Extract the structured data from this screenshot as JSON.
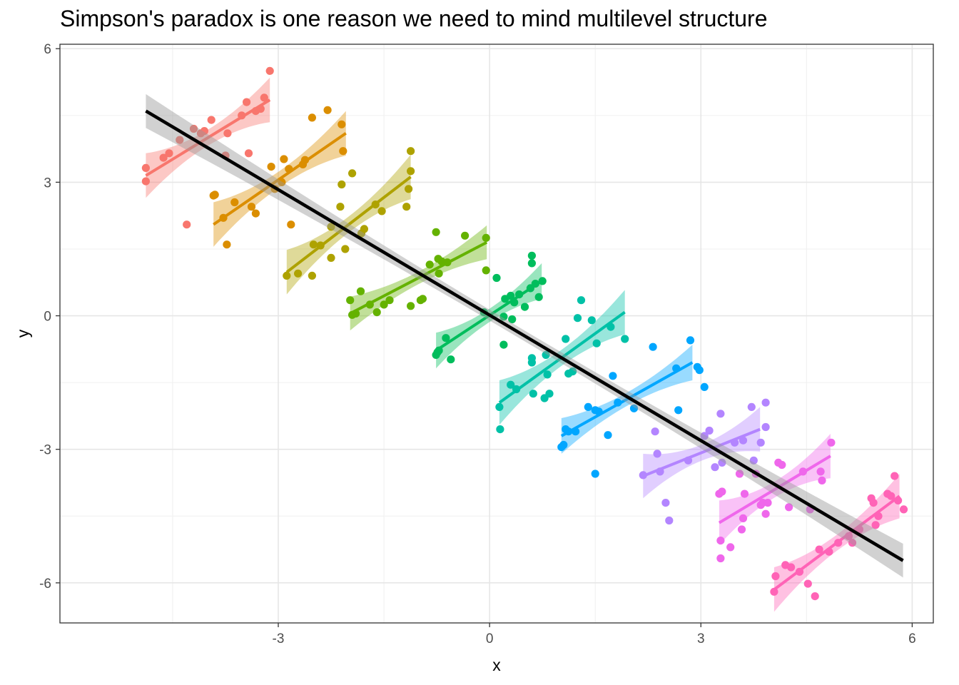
{
  "chart_data": {
    "type": "scatter",
    "title": "Simpson's paradox is one reason we need to mind multilevel structure",
    "xlabel": "x",
    "ylabel": "y",
    "xlim": [
      -6.1,
      6.3
    ],
    "ylim": [
      -6.9,
      6.1
    ],
    "x_ticks": [
      -3,
      0,
      3,
      6
    ],
    "y_ticks": [
      -6,
      -3,
      0,
      3,
      6
    ],
    "x_tick_labels": [
      "-3",
      "0",
      "3",
      "6"
    ],
    "y_tick_labels": [
      "-6",
      "-3",
      "0",
      "3",
      "6"
    ],
    "grid": true,
    "legend": "none",
    "overall_fit": {
      "color": "#000000",
      "band_color": "#999999",
      "x": [
        -4.88,
        5.87
      ],
      "y": [
        4.6,
        -5.5
      ],
      "band_halfwidth": [
        0.38,
        0.12,
        0.38
      ]
    },
    "groups": [
      {
        "color": "#F8766D",
        "fit_x": [
          -4.88,
          -3.12
        ],
        "fit_y": [
          3.15,
          4.85
        ],
        "band_halfwidth": [
          0.5,
          0.18,
          0.5
        ],
        "points": [
          [
            -4.88,
            3.32
          ],
          [
            -4.88,
            3.02
          ],
          [
            -4.63,
            3.55
          ],
          [
            -4.55,
            3.65
          ],
          [
            -4.4,
            3.95
          ],
          [
            -4.3,
            2.05
          ],
          [
            -4.2,
            4.2
          ],
          [
            -4.1,
            4.1
          ],
          [
            -4.05,
            4.15
          ],
          [
            -3.95,
            4.4
          ],
          [
            -3.75,
            3.6
          ],
          [
            -3.72,
            4.1
          ],
          [
            -3.52,
            4.5
          ],
          [
            -3.45,
            4.8
          ],
          [
            -3.42,
            3.65
          ],
          [
            -3.32,
            4.6
          ],
          [
            -3.25,
            4.65
          ],
          [
            -3.2,
            4.9
          ],
          [
            -3.12,
            5.5
          ]
        ]
      },
      {
        "color": "#DB8E00",
        "fit_x": [
          -3.92,
          -2.04
        ],
        "fit_y": [
          2.05,
          4.1
        ],
        "band_halfwidth": [
          0.5,
          0.18,
          0.5
        ],
        "points": [
          [
            -3.92,
            2.7
          ],
          [
            -3.9,
            2.72
          ],
          [
            -3.78,
            2.2
          ],
          [
            -3.73,
            1.6
          ],
          [
            -3.62,
            2.55
          ],
          [
            -3.38,
            2.45
          ],
          [
            -3.32,
            2.3
          ],
          [
            -3.1,
            3.35
          ],
          [
            -3.05,
            2.85
          ],
          [
            -2.95,
            3.0
          ],
          [
            -2.92,
            3.52
          ],
          [
            -2.85,
            3.3
          ],
          [
            -2.82,
            2.05
          ],
          [
            -2.65,
            3.4
          ],
          [
            -2.62,
            3.5
          ],
          [
            -2.52,
            4.45
          ],
          [
            -2.3,
            4.62
          ],
          [
            -2.1,
            4.3
          ],
          [
            -2.08,
            3.7
          ]
        ]
      },
      {
        "color": "#AEA200",
        "fit_x": [
          -2.88,
          -1.12
        ],
        "fit_y": [
          0.98,
          3.12
        ],
        "band_halfwidth": [
          0.5,
          0.18,
          0.5
        ],
        "points": [
          [
            -2.88,
            0.9
          ],
          [
            -2.72,
            0.95
          ],
          [
            -2.52,
            0.9
          ],
          [
            -2.5,
            1.6
          ],
          [
            -2.4,
            1.58
          ],
          [
            -2.25,
            1.3
          ],
          [
            -2.25,
            2.0
          ],
          [
            -2.12,
            2.45
          ],
          [
            -2.05,
            1.5
          ],
          [
            -2.1,
            2.95
          ],
          [
            -1.95,
            3.2
          ],
          [
            -1.82,
            1.85
          ],
          [
            -1.78,
            1.95
          ],
          [
            -1.62,
            2.5
          ],
          [
            -1.53,
            2.35
          ],
          [
            -1.18,
            2.45
          ],
          [
            -1.15,
            2.85
          ],
          [
            -1.12,
            3.25
          ],
          [
            -1.12,
            3.7
          ]
        ]
      },
      {
        "color": "#64B200",
        "fit_x": [
          -1.98,
          -0.04
        ],
        "fit_y": [
          0.05,
          1.65
        ],
        "band_halfwidth": [
          0.38,
          0.14,
          0.38
        ],
        "points": [
          [
            -1.98,
            0.35
          ],
          [
            -1.95,
            0.02
          ],
          [
            -1.9,
            0.05
          ],
          [
            -1.83,
            0.55
          ],
          [
            -1.7,
            0.25
          ],
          [
            -1.6,
            0.08
          ],
          [
            -1.5,
            0.25
          ],
          [
            -1.42,
            0.35
          ],
          [
            -1.12,
            0.22
          ],
          [
            -0.98,
            0.35
          ],
          [
            -0.95,
            0.38
          ],
          [
            -0.85,
            1.15
          ],
          [
            -0.76,
            1.88
          ],
          [
            -0.73,
            1.28
          ],
          [
            -0.68,
            1.22
          ],
          [
            -0.6,
            1.2
          ],
          [
            -0.72,
            0.95
          ],
          [
            -0.35,
            1.8
          ],
          [
            -0.05,
            1.75
          ],
          [
            -0.05,
            1.02
          ]
        ]
      },
      {
        "color": "#00BD5C",
        "fit_x": [
          -0.76,
          0.74
        ],
        "fit_y": [
          -0.78,
          0.78
        ],
        "band_halfwidth": [
          0.4,
          0.15,
          0.4
        ],
        "points": [
          [
            -0.76,
            -0.88
          ],
          [
            -0.74,
            -0.82
          ],
          [
            -0.72,
            -0.78
          ],
          [
            -0.62,
            -0.5
          ],
          [
            -0.55,
            -0.98
          ],
          [
            -0.08,
            0.08
          ],
          [
            0.1,
            0.85
          ],
          [
            0.2,
            -0.65
          ],
          [
            0.2,
            -0.02
          ],
          [
            0.22,
            0.38
          ],
          [
            0.3,
            0.45
          ],
          [
            0.32,
            -0.08
          ],
          [
            0.35,
            0.3
          ],
          [
            0.42,
            0.48
          ],
          [
            0.5,
            0.2
          ],
          [
            0.58,
            0.62
          ],
          [
            0.6,
            1.35
          ],
          [
            0.6,
            1.18
          ],
          [
            0.65,
            0.72
          ],
          [
            0.7,
            0.42
          ],
          [
            0.75,
            0.78
          ]
        ]
      },
      {
        "color": "#00C1A7",
        "fit_x": [
          0.14,
          1.92
        ],
        "fit_y": [
          -1.95,
          0.08
        ],
        "band_halfwidth": [
          0.5,
          0.18,
          0.5
        ],
        "points": [
          [
            0.14,
            -2.05
          ],
          [
            0.15,
            -2.55
          ],
          [
            0.3,
            -1.55
          ],
          [
            0.38,
            -1.65
          ],
          [
            0.6,
            -0.95
          ],
          [
            0.6,
            -1.05
          ],
          [
            0.62,
            -1.75
          ],
          [
            0.78,
            -1.85
          ],
          [
            0.8,
            -0.88
          ],
          [
            0.82,
            -1.32
          ],
          [
            0.85,
            -1.75
          ],
          [
            1.08,
            -0.52
          ],
          [
            1.12,
            -1.3
          ],
          [
            1.18,
            -1.25
          ],
          [
            1.25,
            -0.05
          ],
          [
            1.3,
            0.35
          ],
          [
            1.45,
            -0.1
          ],
          [
            1.52,
            -0.62
          ],
          [
            1.72,
            -0.25
          ],
          [
            1.92,
            -0.52
          ]
        ]
      },
      {
        "color": "#00A6FF",
        "fit_x": [
          1.02,
          2.88
        ],
        "fit_y": [
          -2.7,
          -1.05
        ],
        "band_halfwidth": [
          0.4,
          0.15,
          0.4
        ],
        "points": [
          [
            1.02,
            -2.95
          ],
          [
            1.05,
            -2.9
          ],
          [
            1.08,
            -2.55
          ],
          [
            1.12,
            -2.6
          ],
          [
            1.22,
            -2.6
          ],
          [
            1.4,
            -2.05
          ],
          [
            1.5,
            -2.12
          ],
          [
            1.55,
            -2.15
          ],
          [
            1.5,
            -3.55
          ],
          [
            1.68,
            -2.68
          ],
          [
            1.75,
            -1.35
          ],
          [
            1.82,
            -1.95
          ],
          [
            2.05,
            -2.08
          ],
          [
            2.32,
            -0.7
          ],
          [
            2.65,
            -1.18
          ],
          [
            2.68,
            -2.12
          ],
          [
            2.85,
            -0.55
          ],
          [
            2.95,
            -1.15
          ],
          [
            2.98,
            -1.22
          ],
          [
            3.05,
            -1.6
          ]
        ]
      },
      {
        "color": "#B385FF",
        "fit_x": [
          2.18,
          3.84
        ],
        "fit_y": [
          -3.6,
          -2.55
        ],
        "band_halfwidth": [
          0.5,
          0.18,
          0.5
        ],
        "points": [
          [
            2.18,
            -3.58
          ],
          [
            2.35,
            -2.6
          ],
          [
            2.38,
            -3.1
          ],
          [
            2.42,
            -3.5
          ],
          [
            2.5,
            -4.2
          ],
          [
            2.55,
            -4.6
          ],
          [
            2.82,
            -3.25
          ],
          [
            3.05,
            -2.7
          ],
          [
            3.12,
            -2.58
          ],
          [
            3.2,
            -3.4
          ],
          [
            3.28,
            -2.2
          ],
          [
            3.3,
            -3.3
          ],
          [
            3.48,
            -2.85
          ],
          [
            3.6,
            -2.8
          ],
          [
            3.72,
            -2.05
          ],
          [
            3.75,
            -3.25
          ],
          [
            3.85,
            -2.85
          ],
          [
            3.92,
            -1.95
          ],
          [
            3.92,
            -2.5
          ]
        ]
      },
      {
        "color": "#EF67EB",
        "fit_x": [
          3.26,
          4.84
        ],
        "fit_y": [
          -4.65,
          -3.15
        ],
        "band_halfwidth": [
          0.5,
          0.18,
          0.5
        ],
        "points": [
          [
            3.26,
            -4.0
          ],
          [
            3.28,
            -5.05
          ],
          [
            3.28,
            -5.45
          ],
          [
            3.3,
            -3.95
          ],
          [
            3.42,
            -5.2
          ],
          [
            3.55,
            -3.55
          ],
          [
            3.58,
            -4.8
          ],
          [
            3.6,
            -4.55
          ],
          [
            3.62,
            -4.0
          ],
          [
            3.78,
            -3.55
          ],
          [
            3.85,
            -4.25
          ],
          [
            3.88,
            -4.2
          ],
          [
            3.92,
            -4.45
          ],
          [
            3.95,
            -4.2
          ],
          [
            4.1,
            -3.3
          ],
          [
            4.15,
            -3.35
          ],
          [
            4.25,
            -4.3
          ],
          [
            4.45,
            -3.5
          ],
          [
            4.55,
            -4.35
          ],
          [
            4.7,
            -3.5
          ],
          [
            4.72,
            -3.7
          ],
          [
            4.85,
            -2.85
          ]
        ]
      },
      {
        "color": "#FF63B6",
        "fit_x": [
          4.04,
          5.82
        ],
        "fit_y": [
          -6.15,
          -4.05
        ],
        "band_halfwidth": [
          0.5,
          0.18,
          0.5
        ],
        "points": [
          [
            4.04,
            -6.2
          ],
          [
            4.06,
            -5.85
          ],
          [
            4.2,
            -5.6
          ],
          [
            4.28,
            -5.65
          ],
          [
            4.4,
            -5.75
          ],
          [
            4.52,
            -6.02
          ],
          [
            4.62,
            -6.3
          ],
          [
            4.68,
            -5.25
          ],
          [
            4.82,
            -5.3
          ],
          [
            4.95,
            -5.1
          ],
          [
            5.1,
            -4.95
          ],
          [
            5.15,
            -5.1
          ],
          [
            5.25,
            -4.8
          ],
          [
            5.42,
            -4.1
          ],
          [
            5.45,
            -4.2
          ],
          [
            5.48,
            -4.7
          ],
          [
            5.52,
            -4.5
          ],
          [
            5.65,
            -4.0
          ],
          [
            5.7,
            -4.05
          ],
          [
            5.75,
            -3.6
          ],
          [
            5.8,
            -4.15
          ],
          [
            5.88,
            -4.35
          ]
        ]
      }
    ]
  }
}
